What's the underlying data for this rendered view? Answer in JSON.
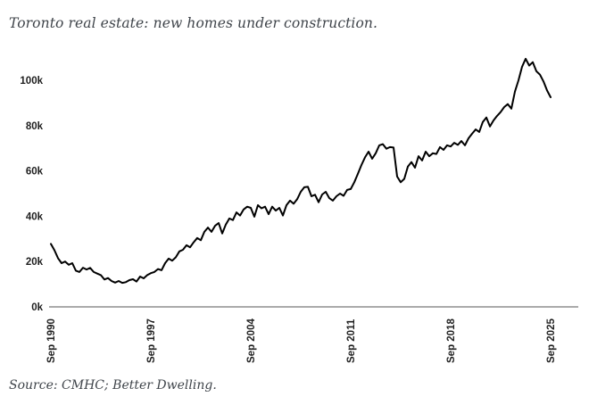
{
  "page": {
    "title": "Toronto real estate: new homes under construction.",
    "source": "Source: CMHC; Better Dwelling."
  },
  "colors": {
    "background": "#ffffff",
    "title_text": "#3f444a",
    "axis_text": "#1f1f1f",
    "line": "#000000",
    "axis_line": "#aaaaaa"
  },
  "chart_data": {
    "type": "line",
    "title": "Toronto real estate: new homes under construction.",
    "series_name": "New homes under construction (thousands of units)",
    "grid": false,
    "legend": false,
    "x_unit": "years since Sep 1990 (quarterly samples)",
    "x_range_labels": [
      "Sep 1990",
      "Sep 2025"
    ],
    "ylim": [
      0,
      112
    ],
    "y_ticks": [
      {
        "label": "0k",
        "value": 0
      },
      {
        "label": "20k",
        "value": 20
      },
      {
        "label": "40k",
        "value": 40
      },
      {
        "label": "60k",
        "value": 60
      },
      {
        "label": "80k",
        "value": 80
      },
      {
        "label": "100k",
        "value": 100
      }
    ],
    "x_ticks": [
      {
        "label": "Sep 1990",
        "offset": 0
      },
      {
        "label": "Sep 1997",
        "offset": 7
      },
      {
        "label": "Sep 2004",
        "offset": 14
      },
      {
        "label": "Sep 2011",
        "offset": 21
      },
      {
        "label": "Sep 2018",
        "offset": 28
      },
      {
        "label": "Sep 2025",
        "offset": 35
      }
    ],
    "x_start": 0,
    "x_step": 0.25,
    "x_end": 35,
    "values_unit": "thousands",
    "values": [
      27.8,
      25.0,
      21.5,
      19.3,
      20.0,
      18.6,
      19.3,
      16.0,
      15.4,
      17.3,
      16.5,
      17.2,
      15.4,
      14.7,
      14.0,
      12.1,
      12.7,
      11.4,
      10.7,
      11.4,
      10.6,
      10.9,
      11.8,
      12.2,
      11.2,
      13.4,
      12.6,
      14.0,
      14.9,
      15.4,
      16.7,
      16.2,
      19.3,
      21.3,
      20.4,
      21.9,
      24.5,
      25.2,
      27.2,
      26.3,
      28.5,
      30.4,
      29.4,
      33.1,
      35.0,
      33.1,
      35.8,
      37.0,
      32.4,
      36.3,
      39.0,
      38.3,
      41.7,
      40.3,
      43.0,
      44.2,
      43.7,
      39.8,
      44.9,
      43.5,
      44.2,
      40.9,
      44.2,
      42.5,
      43.7,
      40.3,
      44.9,
      46.9,
      45.5,
      47.5,
      50.8,
      52.8,
      53.0,
      48.8,
      49.5,
      46.2,
      49.6,
      50.8,
      48.0,
      46.9,
      48.8,
      50.0,
      49.0,
      51.6,
      52.0,
      55.0,
      58.7,
      62.6,
      66.0,
      68.5,
      65.4,
      67.8,
      71.3,
      71.8,
      69.8,
      70.5,
      70.3,
      57.5,
      55.0,
      56.5,
      61.9,
      63.9,
      61.4,
      66.5,
      64.6,
      68.5,
      66.5,
      67.8,
      67.5,
      70.5,
      69.3,
      71.3,
      70.8,
      72.4,
      71.5,
      73.2,
      71.3,
      74.4,
      76.4,
      78.3,
      77.2,
      81.6,
      83.6,
      79.6,
      82.3,
      84.3,
      86.0,
      88.2,
      89.5,
      87.5,
      95.0,
      100.0,
      106.0,
      109.5,
      106.5,
      108.0,
      104.0,
      102.5,
      99.5,
      95.5,
      92.5
    ]
  }
}
